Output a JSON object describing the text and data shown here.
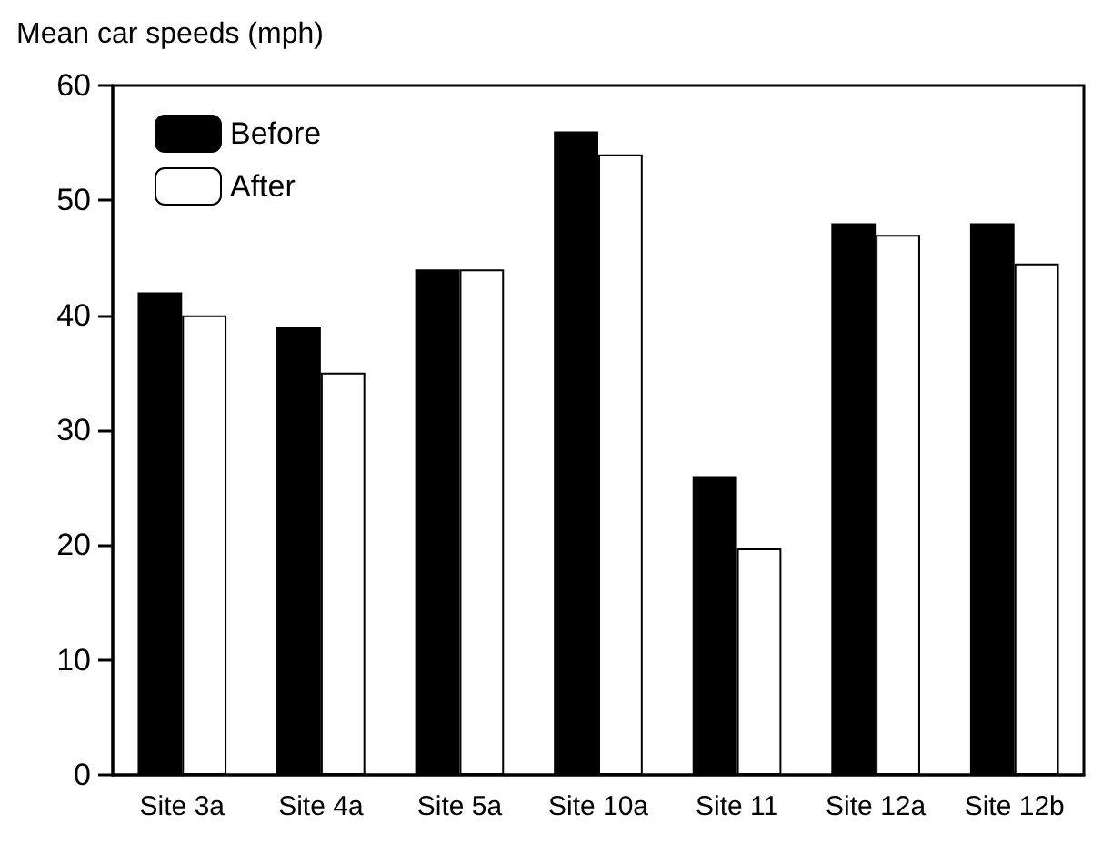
{
  "chart_data": {
    "type": "bar",
    "title": "Mean car speeds (mph)",
    "categories": [
      "Site 3a",
      "Site 4a",
      "Site 5a",
      "Site 10a",
      "Site 11",
      "Site 12a",
      "Site 12b"
    ],
    "series": [
      {
        "name": "Before",
        "color": "#000000",
        "values": [
          42,
          39,
          44,
          56,
          26,
          48,
          48
        ]
      },
      {
        "name": "After",
        "color": "#ffffff",
        "values": [
          40,
          35,
          44,
          54,
          19.7,
          47,
          44.5
        ]
      }
    ],
    "ylim": [
      0,
      60
    ],
    "yticks": [
      0,
      10,
      20,
      30,
      40,
      50,
      60
    ],
    "grid": false,
    "legend": "top left"
  }
}
